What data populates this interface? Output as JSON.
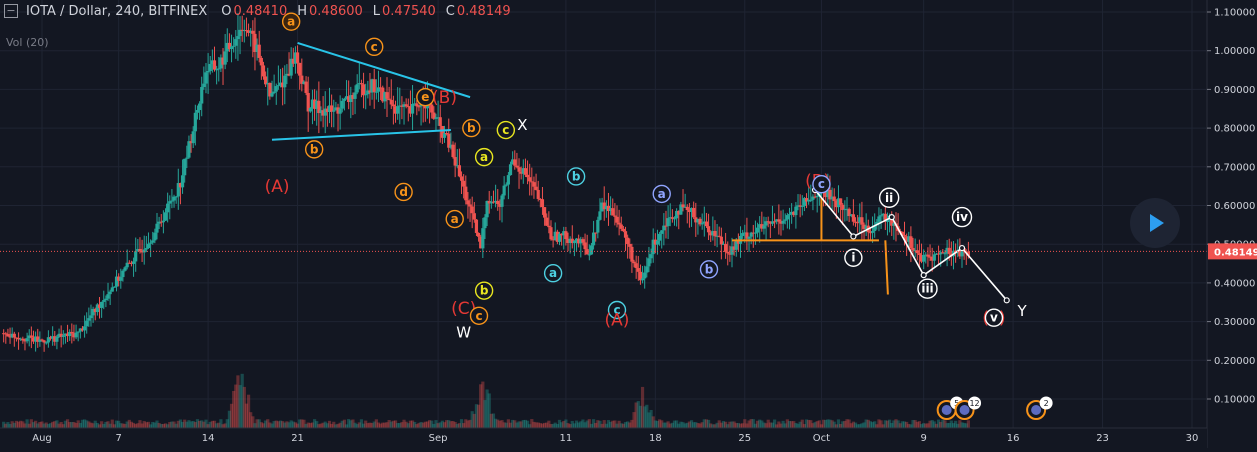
{
  "header": {
    "symbol": "IOTA / Dollar, 240, BITFINEX",
    "o_label": "O",
    "o_value": "0.48410",
    "h_label": "H",
    "h_value": "0.48600",
    "l_label": "L",
    "l_value": "0.47540",
    "c_label": "C",
    "c_value": "0.48149"
  },
  "volume_label": "Vol (20)",
  "colors": {
    "background": "#131722",
    "up": "#26a69a",
    "down": "#ef5350",
    "trendline": "#29c4e8",
    "orange": "#f7931a",
    "red_label": "#e53935",
    "white": "#ffffff",
    "last_price": "#ef5350"
  },
  "chart_data": {
    "type": "candlestick",
    "price_scale": {
      "min": 0.06,
      "max": 1.11,
      "ticks": [
        "0.10000",
        "0.20000",
        "0.30000",
        "0.40000",
        "0.50000",
        "0.60000",
        "0.70000",
        "0.80000",
        "0.90000",
        "1.00000",
        "1.10000"
      ]
    },
    "last_price": "0.48149",
    "time_labels": [
      "Aug",
      "7",
      "14",
      "21",
      "Sep",
      "11",
      "18",
      "25",
      "Oct",
      "9",
      "16",
      "23",
      "30"
    ],
    "time_day_values": [
      1,
      7,
      14,
      21,
      32,
      42,
      49,
      56,
      62,
      70,
      77,
      84,
      91
    ],
    "candle_range_days": [
      -2,
      73.5
    ],
    "path_approx": [
      [
        -2,
        0.27
      ],
      [
        1,
        0.25
      ],
      [
        4,
        0.27
      ],
      [
        6,
        0.36
      ],
      [
        8,
        0.45
      ],
      [
        10,
        0.53
      ],
      [
        12,
        0.66
      ],
      [
        13,
        0.8
      ],
      [
        14,
        0.95
      ],
      [
        15,
        0.96
      ],
      [
        16,
        1.02
      ],
      [
        17,
        1.07
      ],
      [
        18,
        1.0
      ],
      [
        19,
        0.88
      ],
      [
        20,
        0.92
      ],
      [
        21,
        0.99
      ],
      [
        22,
        0.86
      ],
      [
        23,
        0.85
      ],
      [
        24,
        0.84
      ],
      [
        25,
        0.87
      ],
      [
        26,
        0.9
      ],
      [
        27,
        0.91
      ],
      [
        28,
        0.88
      ],
      [
        29,
        0.85
      ],
      [
        30,
        0.84
      ],
      [
        31,
        0.88
      ],
      [
        32,
        0.82
      ],
      [
        33,
        0.76
      ],
      [
        34,
        0.66
      ],
      [
        35,
        0.55
      ],
      [
        35.5,
        0.49
      ],
      [
        36,
        0.62
      ],
      [
        37,
        0.6
      ],
      [
        38,
        0.72
      ],
      [
        39,
        0.68
      ],
      [
        40,
        0.62
      ],
      [
        41,
        0.52
      ],
      [
        42,
        0.52
      ],
      [
        43,
        0.51
      ],
      [
        44,
        0.48
      ],
      [
        45,
        0.6
      ],
      [
        46,
        0.58
      ],
      [
        47,
        0.5
      ],
      [
        48,
        0.4
      ],
      [
        48.3,
        0.42
      ],
      [
        49,
        0.5
      ],
      [
        50,
        0.56
      ],
      [
        51,
        0.59
      ],
      [
        52,
        0.58
      ],
      [
        53,
        0.55
      ],
      [
        54,
        0.52
      ],
      [
        55,
        0.48
      ],
      [
        56,
        0.52
      ],
      [
        58,
        0.55
      ],
      [
        60,
        0.58
      ],
      [
        61,
        0.61
      ],
      [
        62,
        0.64
      ],
      [
        63,
        0.62
      ],
      [
        64,
        0.59
      ],
      [
        65,
        0.56
      ],
      [
        66,
        0.54
      ],
      [
        67,
        0.57
      ],
      [
        68,
        0.55
      ],
      [
        69,
        0.51
      ],
      [
        70,
        0.46
      ],
      [
        71,
        0.47
      ],
      [
        72,
        0.48
      ],
      [
        73.5,
        0.48
      ]
    ],
    "volume_max_days": [
      [
        16.5,
        0.9
      ],
      [
        35.5,
        0.7
      ],
      [
        48,
        0.5
      ]
    ],
    "trendlines": [
      {
        "color": "trendline",
        "points": [
          [
            21,
            1.02
          ],
          [
            34.5,
            0.88
          ]
        ]
      },
      {
        "color": "trendline",
        "points": [
          [
            19,
            0.77
          ],
          [
            33,
            0.795
          ]
        ]
      },
      {
        "color": "orange",
        "points": [
          [
            55,
            0.51
          ],
          [
            66.5,
            0.51
          ]
        ]
      },
      {
        "color": "orange",
        "points": [
          [
            62,
            0.62
          ],
          [
            62,
            0.51
          ]
        ]
      },
      {
        "color": "orange",
        "points": [
          [
            67,
            0.51
          ],
          [
            67.2,
            0.37
          ]
        ]
      },
      {
        "color": "white",
        "points": [
          [
            61.5,
            0.64
          ],
          [
            64.5,
            0.52
          ],
          [
            67.5,
            0.57
          ],
          [
            70,
            0.42
          ],
          [
            73,
            0.49
          ],
          [
            76.5,
            0.355
          ]
        ]
      }
    ],
    "wave_labels": [
      {
        "text": "a",
        "day": 20.5,
        "price": 1.075,
        "style": "circle",
        "color": "orange",
        "fill": "#3a2410"
      },
      {
        "text": "c",
        "day": 27.0,
        "price": 1.01,
        "style": "circle",
        "color": "orange"
      },
      {
        "text": "e",
        "day": 31.0,
        "price": 0.88,
        "style": "circle",
        "color": "orange"
      },
      {
        "text": "(B)",
        "day": 32.5,
        "price": 0.88,
        "style": "text",
        "color": "red_label",
        "size": 17
      },
      {
        "text": "(A)",
        "day": 19.4,
        "price": 0.65,
        "style": "text",
        "color": "red_label",
        "size": 17
      },
      {
        "text": "b",
        "day": 22.3,
        "price": 0.745,
        "style": "circle",
        "color": "orange"
      },
      {
        "text": "d",
        "day": 29.3,
        "price": 0.635,
        "style": "circle",
        "color": "orange"
      },
      {
        "text": "b",
        "day": 34.6,
        "price": 0.8,
        "style": "circle",
        "color": "orange"
      },
      {
        "text": "a",
        "day": 33.3,
        "price": 0.565,
        "style": "circle",
        "color": "orange"
      },
      {
        "text": "c",
        "day": 37.3,
        "price": 0.795,
        "style": "circle",
        "color": "yellow"
      },
      {
        "text": "X",
        "day": 38.6,
        "price": 0.81,
        "style": "text",
        "color": "white",
        "size": 15
      },
      {
        "text": "a",
        "day": 35.6,
        "price": 0.725,
        "style": "circle",
        "color": "yellow"
      },
      {
        "text": "b",
        "day": 35.6,
        "price": 0.38,
        "style": "circle",
        "color": "yellow"
      },
      {
        "text": "(C)",
        "day": 34.0,
        "price": 0.335,
        "style": "text",
        "color": "red_label",
        "size": 17
      },
      {
        "text": "c",
        "day": 35.2,
        "price": 0.315,
        "style": "circle",
        "color": "orange"
      },
      {
        "text": "W",
        "day": 34.0,
        "price": 0.275,
        "style": "text",
        "color": "white",
        "size": 15
      },
      {
        "text": "b",
        "day": 42.8,
        "price": 0.675,
        "style": "circle",
        "color": "cyan"
      },
      {
        "text": "a",
        "day": 41.0,
        "price": 0.425,
        "style": "circle",
        "color": "cyan"
      },
      {
        "text": "c",
        "day": 46.0,
        "price": 0.33,
        "style": "circle",
        "color": "cyan"
      },
      {
        "text": "(A)",
        "day": 46.0,
        "price": 0.305,
        "style": "text",
        "color": "red_label",
        "size": 17
      },
      {
        "text": "a",
        "day": 49.5,
        "price": 0.63,
        "style": "circle",
        "color": "blue"
      },
      {
        "text": "b",
        "day": 53.2,
        "price": 0.435,
        "style": "circle",
        "color": "blue"
      },
      {
        "text": "(B)",
        "day": 61.7,
        "price": 0.665,
        "style": "text",
        "color": "red_label",
        "size": 17
      },
      {
        "text": "c",
        "day": 62.0,
        "price": 0.655,
        "style": "circle",
        "color": "blue"
      },
      {
        "text": "i",
        "day": 64.5,
        "price": 0.465,
        "style": "circle",
        "color": "white"
      },
      {
        "text": "ii",
        "day": 67.3,
        "price": 0.62,
        "style": "circle",
        "color": "white"
      },
      {
        "text": "iii",
        "day": 70.3,
        "price": 0.385,
        "style": "circle",
        "color": "white"
      },
      {
        "text": "iv",
        "day": 73.0,
        "price": 0.57,
        "style": "circle",
        "color": "white"
      },
      {
        "text": "(v)",
        "day": 75.5,
        "price": 0.31,
        "style": "text",
        "color": "red_label",
        "size": 17
      },
      {
        "text": "v",
        "day": 75.5,
        "price": 0.31,
        "style": "circle",
        "color": "white"
      },
      {
        "text": "Y",
        "day": 77.7,
        "price": 0.33,
        "style": "text",
        "color": "white",
        "size": 15
      }
    ],
    "events": [
      {
        "day": 71.8,
        "badge": "5"
      },
      {
        "day": 73.2,
        "badge": "12"
      },
      {
        "day": 78.8,
        "badge": "2"
      }
    ]
  }
}
